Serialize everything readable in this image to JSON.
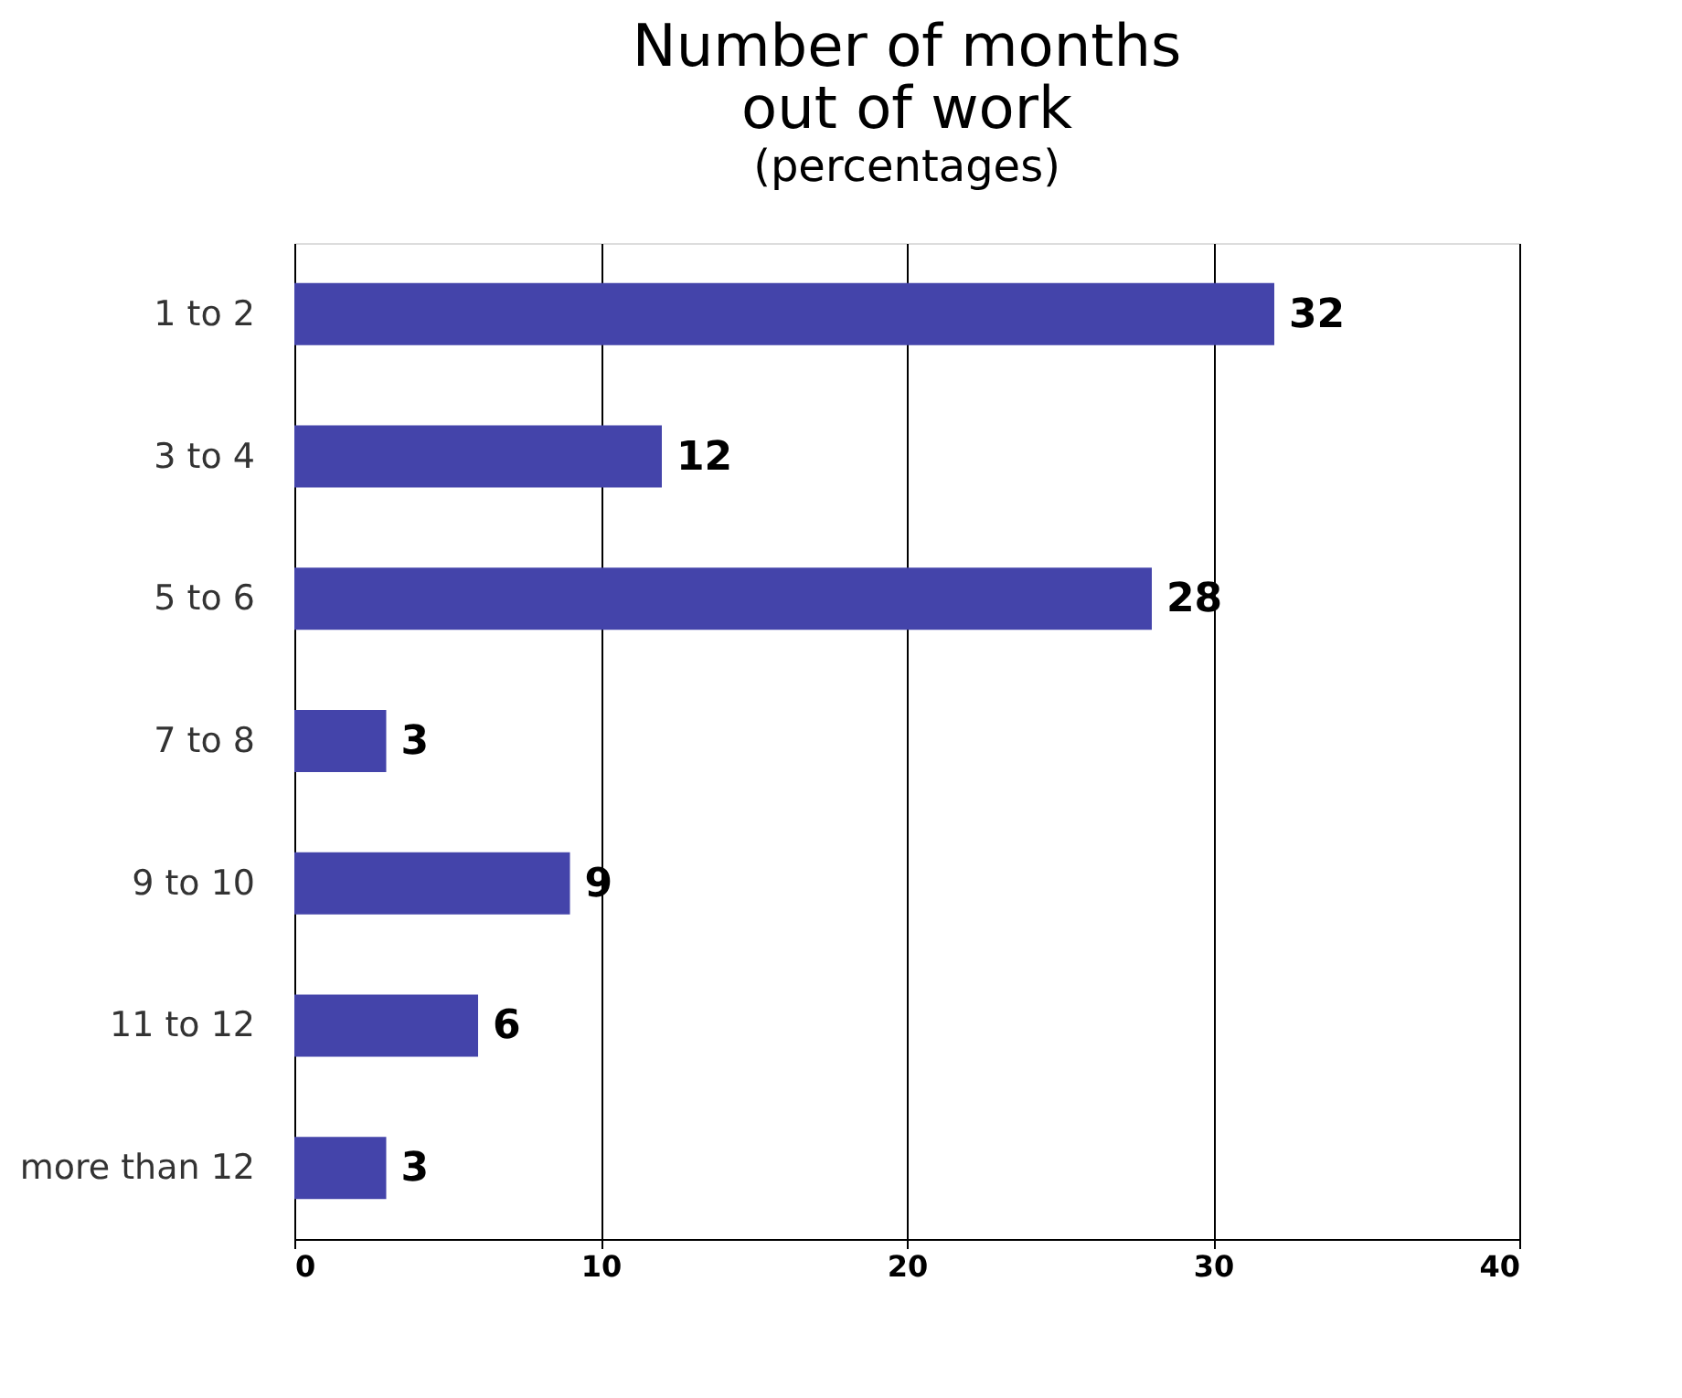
{
  "chart_data": {
    "type": "bar",
    "orientation": "horizontal",
    "title": "Number of months\nout of work",
    "subtitle": "(percentages)",
    "categories": [
      "1 to 2",
      "3 to 4",
      "5 to 6",
      "7 to 8",
      "9 to 10",
      "11 to 12",
      "more than 12"
    ],
    "values": [
      32,
      12,
      28,
      3,
      9,
      6,
      3
    ],
    "color": "#4444aa",
    "xlim": [
      0,
      40
    ],
    "xticks": [
      0,
      10,
      20,
      30,
      40
    ],
    "grid": "x",
    "data_labels": true
  }
}
